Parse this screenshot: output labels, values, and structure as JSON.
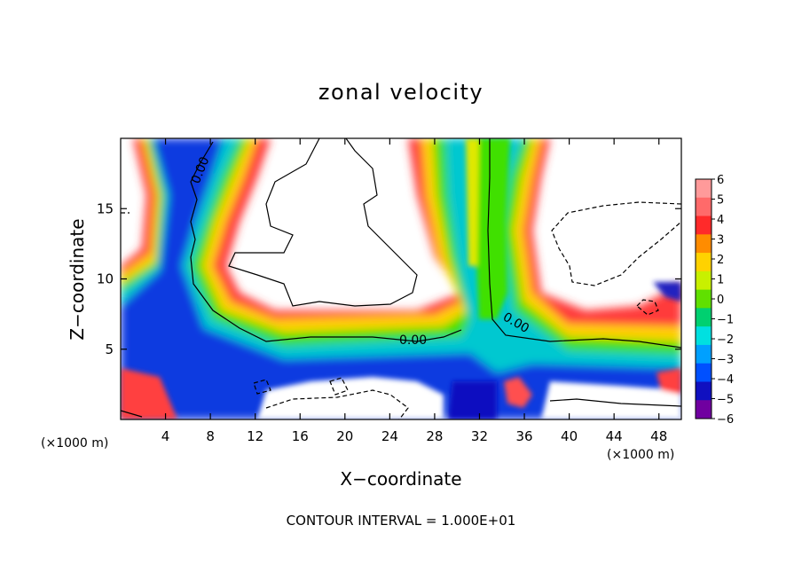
{
  "chart_data": {
    "type": "heatmap",
    "title": "zonal velocity",
    "xlabel": "X−coordinate",
    "ylabel": "Z−coordinate",
    "x_unit_left": "(×1000 m)",
    "x_unit_right": "(×1000 m)",
    "footer": "CONTOUR INTERVAL = 1.000E+01",
    "xlim": [
      0,
      50
    ],
    "ylim": [
      0,
      20
    ],
    "x_ticks": [
      4,
      8,
      12,
      16,
      20,
      24,
      28,
      32,
      36,
      40,
      44,
      48
    ],
    "y_ticks": [
      5,
      10,
      15
    ],
    "colorbar": {
      "min": -6,
      "max": 6,
      "labels": [
        "6",
        "5",
        "4",
        "3",
        "2",
        "1",
        "0",
        "−1",
        "−2",
        "−3",
        "−4",
        "−5",
        "−6"
      ],
      "colors": [
        "#ff9a9a",
        "#ff6a6a",
        "#ff2a2a",
        "#ff8c00",
        "#ffd200",
        "#c8f000",
        "#60e000",
        "#00d070",
        "#00e0e0",
        "#00a0ff",
        "#0050ff",
        "#1010c0",
        "#7000a0"
      ]
    },
    "contour_labels": [
      "0.00",
      "0.00",
      "0.00"
    ],
    "line_colors": {
      "contour": "#000000"
    }
  }
}
